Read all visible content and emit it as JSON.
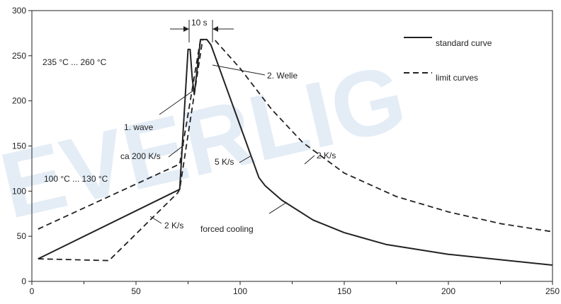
{
  "watermark": "EVERLIG",
  "chart_data": {
    "type": "line",
    "xlim": [
      0,
      250
    ],
    "ylim": [
      0,
      300
    ],
    "xticks": [
      0,
      50,
      100,
      150,
      200,
      250
    ],
    "yticks": [
      0,
      50,
      100,
      150,
      200,
      250,
      300
    ],
    "grid": false,
    "legend_position": "top-right",
    "legend": [
      {
        "label": "standard curve",
        "style": "solid"
      },
      {
        "label": "limit curves",
        "style": "dashed"
      }
    ],
    "series": [
      {
        "style": "solid",
        "x": [
          3,
          71,
          73,
          75,
          76,
          77,
          78,
          81,
          84,
          86,
          109,
          112,
          120,
          135,
          150,
          170,
          200,
          225,
          250
        ],
        "y": [
          25,
          102,
          180,
          257,
          257,
          225,
          207,
          268,
          268,
          262,
          115,
          106,
          90,
          68,
          54,
          41,
          30,
          24,
          18
        ]
      },
      {
        "style": "dashed",
        "x": [
          3,
          71,
          81
        ],
        "y": [
          58,
          130,
          268
        ]
      },
      {
        "style": "dashed",
        "x": [
          3,
          37,
          70,
          71,
          82
        ],
        "y": [
          25,
          23,
          98,
          102,
          268
        ]
      },
      {
        "style": "dashed",
        "x": [
          88,
          100,
          115,
          130,
          150,
          175,
          200,
          225,
          250
        ],
        "y": [
          267,
          236,
          191,
          154,
          120,
          94,
          77,
          64,
          55
        ]
      }
    ],
    "annotations": [
      {
        "text": "235 °C ... 260 °C"
      },
      {
        "text": "100 °C ... 130 °C"
      },
      {
        "text": "10 s"
      },
      {
        "text": "1. wave"
      },
      {
        "text": "2. Welle"
      },
      {
        "text": "ca 200 K/s"
      },
      {
        "text": "5 K/s"
      },
      {
        "text": "2 K/s"
      },
      {
        "text": "2 K/s"
      },
      {
        "text": "forced cooling"
      }
    ]
  }
}
